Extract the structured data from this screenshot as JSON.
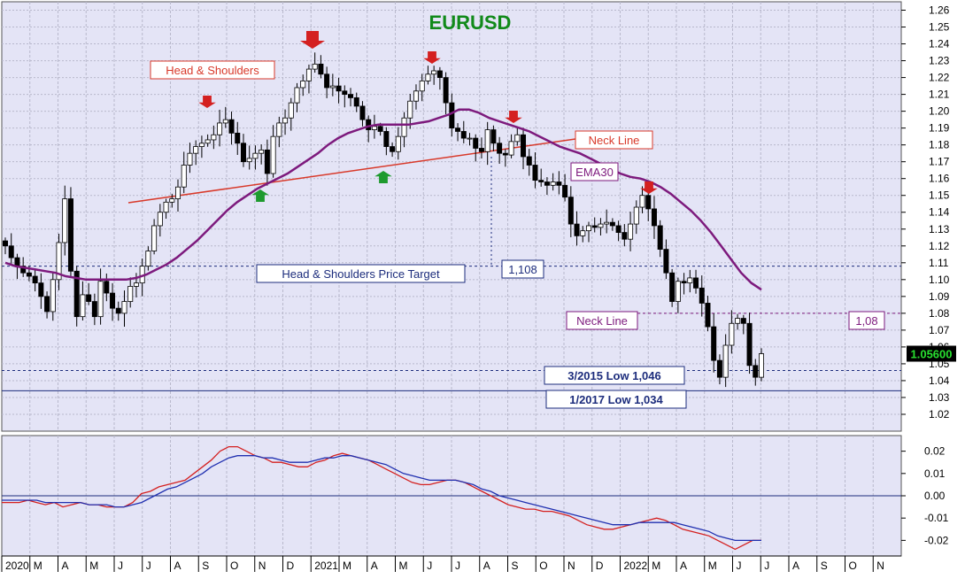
{
  "chart_data": [
    {
      "type": "candlestick",
      "title": "EURUSD",
      "ylim": [
        1.01,
        1.265
      ],
      "y_ticks": [
        "1.02",
        "1.03",
        "1.04",
        "1.05",
        "1.06",
        "1.07",
        "1.08",
        "1.09",
        "1.10",
        "1.11",
        "1.12",
        "1.13",
        "1.14",
        "1.15",
        "1.16",
        "1.17",
        "1.18",
        "1.19",
        "1.20",
        "1.21",
        "1.22",
        "1.23",
        "1.24",
        "1.25",
        "1.26"
      ],
      "x_months": [
        "2020",
        "M",
        "A",
        "M",
        "J",
        "J",
        "A",
        "S",
        "O",
        "N",
        "D",
        "2021",
        "M",
        "A",
        "M",
        "J",
        "J",
        "A",
        "S",
        "O",
        "N",
        "D",
        "2022",
        "M",
        "A",
        "M",
        "J",
        "J",
        "A",
        "S",
        "O",
        "N"
      ],
      "close_series": [
        1.12,
        1.113,
        1.108,
        1.104,
        1.102,
        1.098,
        1.09,
        1.081,
        1.1,
        1.122,
        1.148,
        1.105,
        1.078,
        1.091,
        1.087,
        1.078,
        1.099,
        1.092,
        1.083,
        1.08,
        1.087,
        1.096,
        1.098,
        1.108,
        1.117,
        1.132,
        1.14,
        1.146,
        1.148,
        1.155,
        1.168,
        1.175,
        1.179,
        1.181,
        1.183,
        1.186,
        1.193,
        1.195,
        1.187,
        1.181,
        1.17,
        1.172,
        1.175,
        1.177,
        1.163,
        1.185,
        1.193,
        1.196,
        1.205,
        1.214,
        1.218,
        1.225,
        1.228,
        1.222,
        1.214,
        1.215,
        1.212,
        1.21,
        1.208,
        1.203,
        1.195,
        1.189,
        1.191,
        1.188,
        1.179,
        1.176,
        1.185,
        1.196,
        1.206,
        1.212,
        1.218,
        1.222,
        1.224,
        1.22,
        1.205,
        1.19,
        1.188,
        1.184,
        1.184,
        1.178,
        1.176,
        1.189,
        1.181,
        1.175,
        1.174,
        1.182,
        1.186,
        1.173,
        1.168,
        1.159,
        1.158,
        1.156,
        1.158,
        1.156,
        1.149,
        1.133,
        1.126,
        1.129,
        1.132,
        1.131,
        1.133,
        1.134,
        1.132,
        1.128,
        1.124,
        1.133,
        1.143,
        1.15,
        1.142,
        1.132,
        1.118,
        1.104,
        1.087,
        1.099,
        1.098,
        1.101,
        1.095,
        1.086,
        1.072,
        1.052,
        1.042,
        1.061,
        1.074,
        1.077,
        1.074,
        1.049,
        1.042,
        1.056
      ],
      "ema30_series": [
        1.11,
        1.108,
        1.107,
        1.106,
        1.105,
        1.104,
        1.102,
        1.101,
        1.1,
        1.1,
        1.1,
        1.1,
        1.1,
        1.101,
        1.103,
        1.106,
        1.109,
        1.113,
        1.118,
        1.123,
        1.129,
        1.135,
        1.141,
        1.146,
        1.15,
        1.154,
        1.157,
        1.16,
        1.163,
        1.167,
        1.171,
        1.175,
        1.18,
        1.184,
        1.187,
        1.189,
        1.191,
        1.192,
        1.192,
        1.192,
        1.192,
        1.193,
        1.194,
        1.196,
        1.198,
        1.201,
        1.201,
        1.199,
        1.196,
        1.194,
        1.192,
        1.19,
        1.188,
        1.185,
        1.182,
        1.179,
        1.177,
        1.175,
        1.172,
        1.169,
        1.166,
        1.163,
        1.161,
        1.16,
        1.158,
        1.155,
        1.151,
        1.146,
        1.141,
        1.135,
        1.128,
        1.12,
        1.112,
        1.104,
        1.098,
        1.094
      ],
      "price_target_line": 1.108,
      "neckline_2022": 1.08,
      "low_2015": 1.046,
      "low_2017": 1.034,
      "last_price": "1.05600"
    },
    {
      "type": "line",
      "ylim": [
        -0.027,
        0.027
      ],
      "y_ticks": [
        "0.02",
        "0.01",
        "0.00",
        "-0.01",
        "-0.02"
      ],
      "series": [
        {
          "color": "#d42020",
          "values": [
            -0.003,
            -0.003,
            -0.003,
            -0.002,
            -0.003,
            -0.004,
            -0.003,
            -0.005,
            -0.004,
            -0.003,
            -0.004,
            -0.004,
            -0.005,
            -0.005,
            -0.005,
            -0.003,
            0.001,
            0.002,
            0.004,
            0.005,
            0.006,
            0.007,
            0.01,
            0.013,
            0.016,
            0.02,
            0.022,
            0.022,
            0.02,
            0.018,
            0.017,
            0.015,
            0.015,
            0.014,
            0.013,
            0.013,
            0.015,
            0.016,
            0.018,
            0.019,
            0.018,
            0.017,
            0.016,
            0.014,
            0.012,
            0.01,
            0.008,
            0.006,
            0.005,
            0.005,
            0.006,
            0.007,
            0.007,
            0.006,
            0.004,
            0.002,
            0.0,
            -0.002,
            -0.004,
            -0.005,
            -0.006,
            -0.006,
            -0.007,
            -0.007,
            -0.008,
            -0.009,
            -0.011,
            -0.013,
            -0.014,
            -0.015,
            -0.015,
            -0.014,
            -0.013,
            -0.012,
            -0.011,
            -0.01,
            -0.011,
            -0.013,
            -0.015,
            -0.016,
            -0.017,
            -0.018,
            -0.02,
            -0.022,
            -0.024,
            -0.022,
            -0.02,
            -0.02
          ]
        },
        {
          "color": "#2030b0",
          "values": [
            -0.002,
            -0.002,
            -0.002,
            -0.002,
            -0.002,
            -0.003,
            -0.003,
            -0.003,
            -0.003,
            -0.003,
            -0.004,
            -0.004,
            -0.004,
            -0.005,
            -0.005,
            -0.004,
            -0.003,
            -0.001,
            0.001,
            0.003,
            0.004,
            0.006,
            0.008,
            0.01,
            0.013,
            0.015,
            0.017,
            0.018,
            0.018,
            0.018,
            0.017,
            0.017,
            0.016,
            0.015,
            0.015,
            0.015,
            0.016,
            0.017,
            0.017,
            0.018,
            0.018,
            0.017,
            0.016,
            0.015,
            0.014,
            0.012,
            0.01,
            0.009,
            0.008,
            0.007,
            0.007,
            0.007,
            0.007,
            0.006,
            0.005,
            0.003,
            0.002,
            0.0,
            -0.001,
            -0.002,
            -0.003,
            -0.004,
            -0.005,
            -0.006,
            -0.007,
            -0.008,
            -0.009,
            -0.01,
            -0.011,
            -0.012,
            -0.013,
            -0.013,
            -0.013,
            -0.012,
            -0.012,
            -0.012,
            -0.012,
            -0.012,
            -0.013,
            -0.014,
            -0.015,
            -0.016,
            -0.018,
            -0.019,
            -0.02,
            -0.02,
            -0.02,
            -0.02
          ]
        }
      ]
    }
  ],
  "annotations": {
    "head_shoulders": "Head & Shoulders",
    "neck_line_1": "Neck Line",
    "ema30": "EMA30",
    "price_target": "Head & Shoulders Price Target",
    "price_target_value": "1,108",
    "neck_line_2": "Neck Line",
    "neck_line_2_value": "1,08",
    "low_2015": "3/2015 Low  1,046",
    "low_2017": "1/2017 Low  1,034"
  },
  "colors": {
    "bg": "#e4e4f6",
    "title": "#118a1a",
    "ema": "#7d1a7d",
    "neck": "#d8392a",
    "target": "#1c2c7c",
    "down_arrow": "#d42020",
    "up_arrow": "#1e9a2e",
    "last_price_bg": "#000000",
    "last_price_fg": "#28e030"
  }
}
